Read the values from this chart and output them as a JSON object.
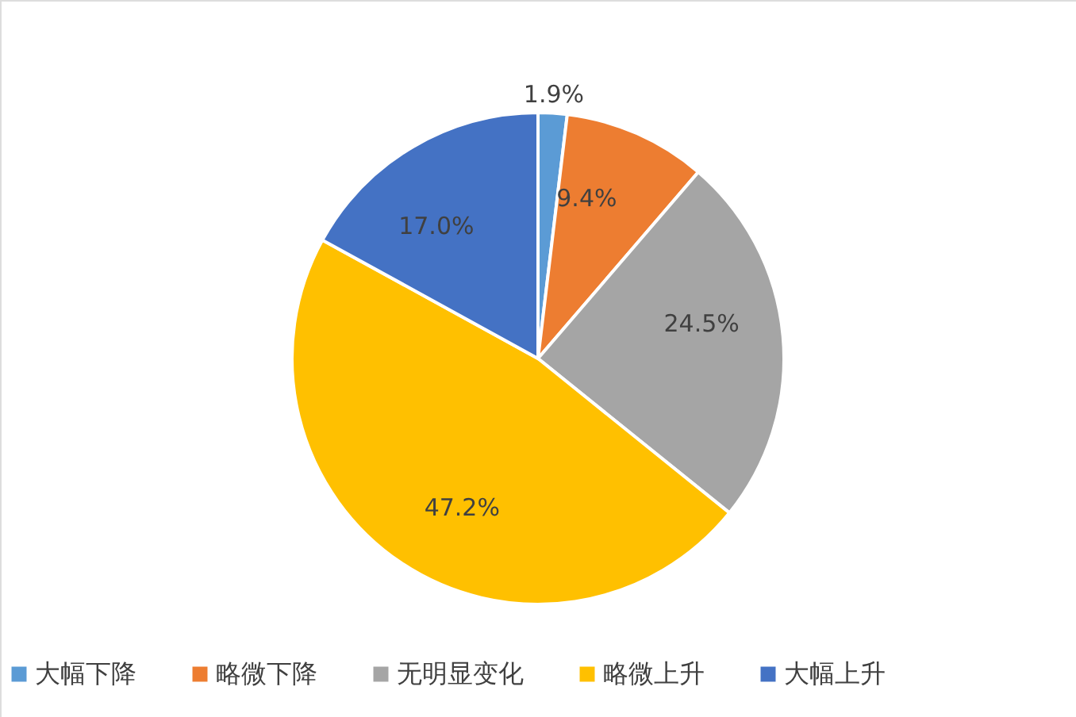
{
  "chart_data": {
    "type": "pie",
    "categories": [
      "大幅下降",
      "略微下降",
      "无明显变化",
      "略微上升",
      "大幅上升"
    ],
    "values": [
      1.9,
      9.4,
      24.5,
      47.2,
      17.0
    ],
    "colors": [
      "#5b9bd5",
      "#ed7d31",
      "#a5a5a5",
      "#ffc000",
      "#4472c4"
    ],
    "value_labels": [
      "1.9%",
      "9.4%",
      "24.5%",
      "47.2%",
      "17.0%"
    ],
    "legend": "bottom"
  }
}
